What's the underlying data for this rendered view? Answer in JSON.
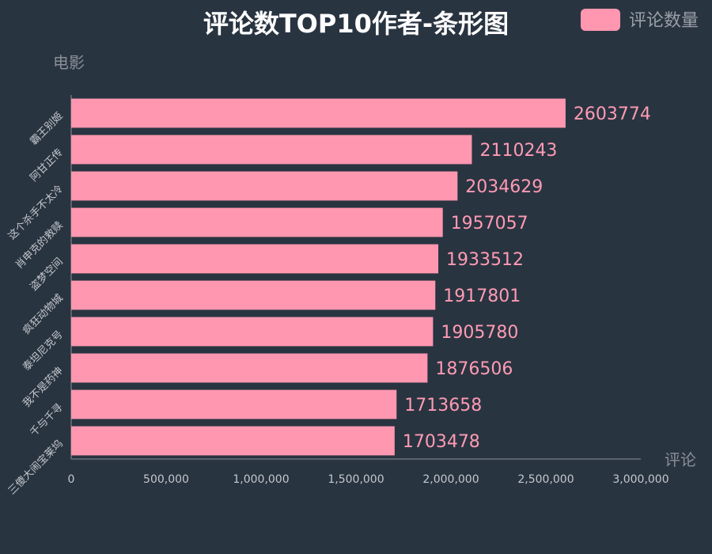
{
  "chart_data": {
    "type": "bar",
    "orientation": "horizontal",
    "title": "评论数TOP10作者-条形图",
    "xlabel": "评论",
    "ylabel": "电影",
    "xlim": [
      0,
      3000000
    ],
    "x_ticks": [
      "0",
      "500,000",
      "1,000,000",
      "1,500,000",
      "2,000,000",
      "2,500,000",
      "3,000,000"
    ],
    "categories": [
      "霸王别姬",
      "阿甘正传",
      "这个杀手不太冷",
      "肖申克的救赎",
      "盗梦空间",
      "疯狂动物城",
      "泰坦尼克号",
      "我不是药神",
      "千与千寻",
      "三傻大闹宝莱坞"
    ],
    "series": [
      {
        "name": "评论数量",
        "values": [
          2603774,
          2110243,
          2034629,
          1957057,
          1933512,
          1917801,
          1905780,
          1876506,
          1713658,
          1703478
        ],
        "color": "#ff97b0"
      }
    ],
    "legend_position": "top-right",
    "grid": false
  }
}
